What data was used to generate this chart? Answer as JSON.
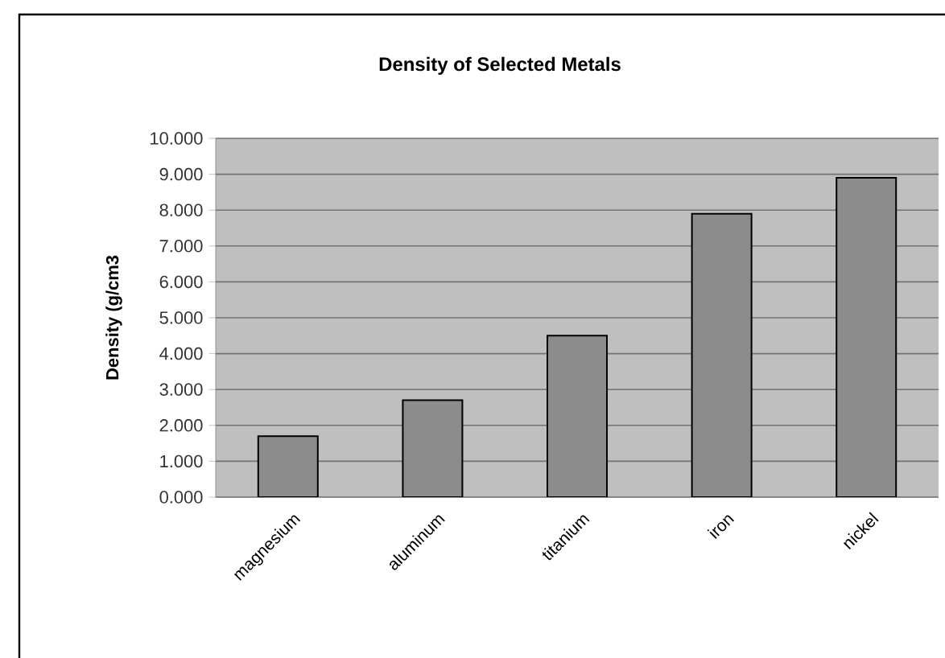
{
  "chart_data": {
    "type": "bar",
    "title": "Density of Selected Metals",
    "ylabel": "Density (g/cm3",
    "categories": [
      "magnesium",
      "aluminum",
      "titanium",
      "iron",
      "nickel"
    ],
    "values": [
      1.7,
      2.7,
      4.5,
      7.9,
      8.9
    ],
    "color": "#8c8c8c",
    "ylim": [
      0,
      10
    ],
    "yticks": [
      {
        "value": 0,
        "label": "0.000"
      },
      {
        "value": 1,
        "label": "1.000"
      },
      {
        "value": 2,
        "label": "2.000"
      },
      {
        "value": 3,
        "label": "3.000"
      },
      {
        "value": 4,
        "label": "4.000"
      },
      {
        "value": 5,
        "label": "5.000"
      },
      {
        "value": 6,
        "label": "6.000"
      },
      {
        "value": 7,
        "label": "7.000"
      },
      {
        "value": 8,
        "label": "8.000"
      },
      {
        "value": 9,
        "label": "9.000"
      },
      {
        "value": 10,
        "label": "10.000"
      }
    ],
    "grid": "y"
  }
}
